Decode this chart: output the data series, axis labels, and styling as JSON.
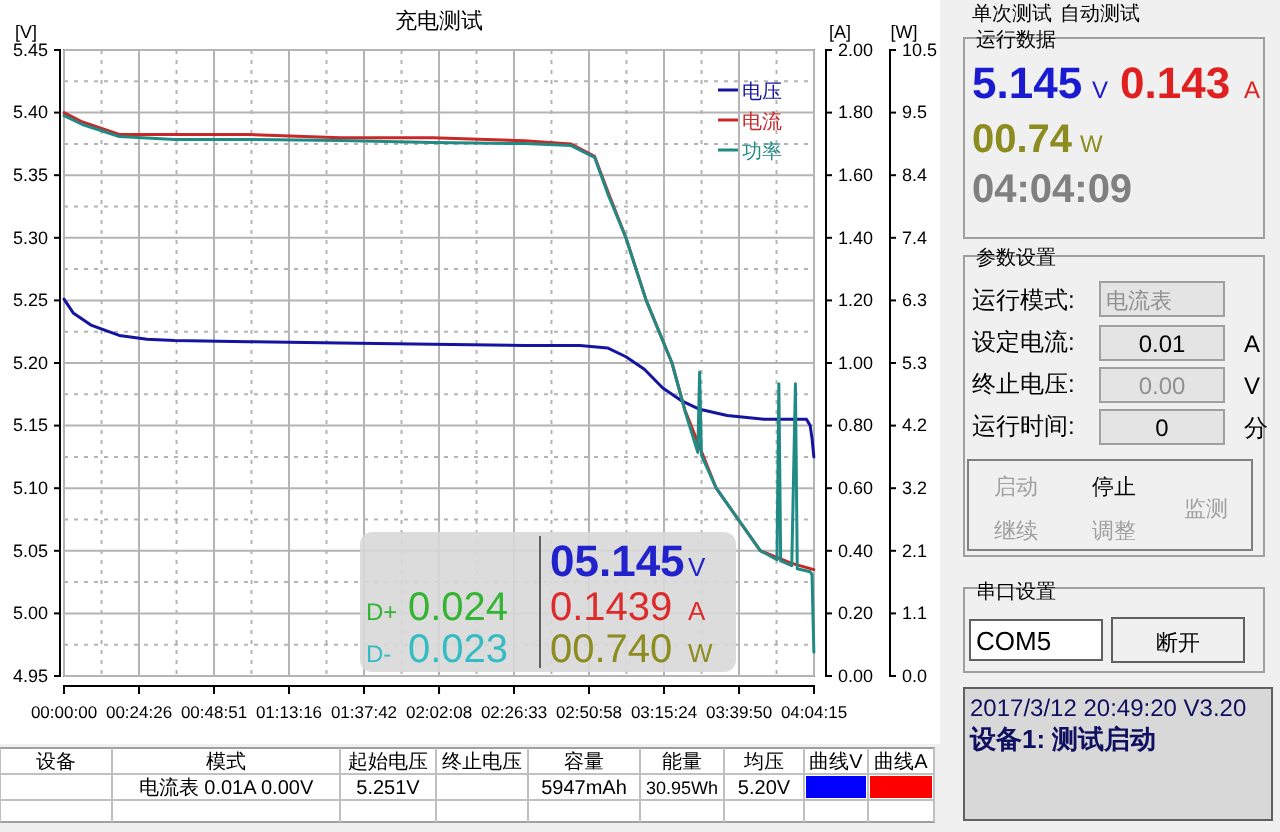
{
  "chart_data": {
    "type": "line",
    "title": "充电测试",
    "ylabel": "[V]",
    "y2label": "[A]",
    "y3label": "[W]",
    "xlim": [
      0,
      4.0708
    ],
    "xticks": [
      {
        "value": 0,
        "label": "00:00:00"
      },
      {
        "value": 0.4072,
        "label": "00:24:26"
      },
      {
        "value": 0.8142,
        "label": "00:48:51"
      },
      {
        "value": 1.2211,
        "label": "01:13:16"
      },
      {
        "value": 1.6283,
        "label": "01:37:42"
      },
      {
        "value": 2.0356,
        "label": "02:02:08"
      },
      {
        "value": 2.4425,
        "label": "02:26:33"
      },
      {
        "value": 2.8494,
        "label": "02:50:58"
      },
      {
        "value": 3.2567,
        "label": "03:15:24"
      },
      {
        "value": 3.6639,
        "label": "03:39:50"
      },
      {
        "value": 4.0708,
        "label": "04:04:15"
      }
    ],
    "ylim": [
      4.95,
      5.45
    ],
    "yticks": [
      {
        "value": 4.95,
        "label": "4.95"
      },
      {
        "value": 5.0,
        "label": "5.00"
      },
      {
        "value": 5.05,
        "label": "5.05"
      },
      {
        "value": 5.1,
        "label": "5.10"
      },
      {
        "value": 5.15,
        "label": "5.15"
      },
      {
        "value": 5.2,
        "label": "5.20"
      },
      {
        "value": 5.25,
        "label": "5.25"
      },
      {
        "value": 5.3,
        "label": "5.30"
      },
      {
        "value": 5.35,
        "label": "5.35"
      },
      {
        "value": 5.4,
        "label": "5.40"
      },
      {
        "value": 5.45,
        "label": "5.45"
      }
    ],
    "y2lim": [
      0,
      2
    ],
    "y2ticks": [
      {
        "value": 0,
        "label": "0.00"
      },
      {
        "value": 0.2,
        "label": "0.20"
      },
      {
        "value": 0.4,
        "label": "0.40"
      },
      {
        "value": 0.6,
        "label": "0.60"
      },
      {
        "value": 0.8,
        "label": "0.80"
      },
      {
        "value": 1.0,
        "label": "1.00"
      },
      {
        "value": 1.2,
        "label": "1.20"
      },
      {
        "value": 1.4,
        "label": "1.40"
      },
      {
        "value": 1.6,
        "label": "1.60"
      },
      {
        "value": 1.8,
        "label": "1.80"
      },
      {
        "value": 2.0,
        "label": "2.00"
      }
    ],
    "y3lim": [
      0,
      10.5
    ],
    "y3ticks": [
      {
        "value": 0,
        "label": "0.0"
      },
      {
        "value": 1.05,
        "label": "1.1"
      },
      {
        "value": 2.1,
        "label": "2.1"
      },
      {
        "value": 3.15,
        "label": "3.2"
      },
      {
        "value": 4.2,
        "label": "4.2"
      },
      {
        "value": 5.25,
        "label": "5.3"
      },
      {
        "value": 6.3,
        "label": "6.3"
      },
      {
        "value": 7.35,
        "label": "7.4"
      },
      {
        "value": 8.4,
        "label": "8.4"
      },
      {
        "value": 9.45,
        "label": "9.5"
      },
      {
        "value": 10.5,
        "label": "10.5"
      }
    ],
    "grid": true,
    "legend": "top right",
    "series": [
      {
        "name": "电压",
        "color": "#1414a0",
        "axis": "y",
        "x": [
          0,
          0.05,
          0.15,
          0.3,
          0.45,
          0.6,
          1.0,
          1.5,
          2.0,
          2.5,
          2.8,
          2.95,
          3.05,
          3.15,
          3.25,
          3.35,
          3.45,
          3.6,
          3.8,
          3.95,
          4.03,
          4.05,
          4.06,
          4.07
        ],
        "values": [
          5.251,
          5.24,
          5.23,
          5.222,
          5.219,
          5.218,
          5.217,
          5.216,
          5.215,
          5.214,
          5.214,
          5.212,
          5.205,
          5.195,
          5.18,
          5.17,
          5.163,
          5.158,
          5.155,
          5.155,
          5.155,
          5.15,
          5.14,
          5.125
        ]
      },
      {
        "name": "电流",
        "color": "#c82828",
        "axis": "y2",
        "x": [
          0,
          0.1,
          0.3,
          0.6,
          1.0,
          1.5,
          2.0,
          2.5,
          2.75,
          2.88,
          2.95,
          3.05,
          3.16,
          3.3,
          3.37,
          3.54,
          3.78,
          3.95,
          4.07
        ],
        "values": [
          1.8,
          1.77,
          1.73,
          1.73,
          1.73,
          1.72,
          1.72,
          1.71,
          1.7,
          1.66,
          1.55,
          1.4,
          1.2,
          1.0,
          0.85,
          0.6,
          0.4,
          0.36,
          0.34
        ]
      },
      {
        "name": "功率",
        "color": "#208a84",
        "axis": "y3",
        "x": [
          0,
          0.1,
          0.3,
          0.6,
          1.0,
          1.5,
          2.0,
          2.5,
          2.75,
          2.88,
          2.95,
          3.05,
          3.16,
          3.3,
          3.37,
          3.44,
          3.45,
          3.46,
          3.54,
          3.78,
          3.87,
          3.88,
          3.89,
          3.95,
          3.97,
          3.98,
          4.05,
          4.06,
          4.07
        ],
        "values": [
          9.4,
          9.25,
          9.05,
          9.0,
          9.0,
          8.98,
          8.95,
          8.93,
          8.9,
          8.7,
          8.1,
          7.35,
          6.3,
          5.25,
          4.45,
          3.75,
          5.1,
          3.7,
          3.15,
          2.1,
          1.95,
          4.9,
          1.93,
          1.85,
          4.9,
          1.8,
          1.75,
          1.7,
          0.4
        ]
      }
    ],
    "annotations": [
      "05.145",
      "V",
      "D+",
      "0.024",
      "0.1439",
      "A",
      "D-",
      "0.023",
      "00.740",
      "W",
      "单次测试",
      "自动测试",
      "运行数据",
      "5.145",
      "V",
      "0.143",
      "A",
      "00.74",
      "W",
      "04:04:09",
      "参数设置",
      "运行模式:",
      "电流表",
      "设定电流:",
      "0.01",
      "A",
      "终止电压:",
      "0.00",
      "V",
      "运行时间:",
      "0",
      "分",
      "启动",
      "停止",
      "监测",
      "继续",
      "调整",
      "串口设置",
      "COM5",
      "断开",
      "2017/3/12 20:49:20  V3.20",
      "设备1: 测试启动",
      "设备",
      "模式",
      "起始电压",
      "终止电压",
      "容量",
      "能量",
      "均压",
      "曲线V",
      "曲线A",
      "电流表  0.01A  0.00V",
      "5.251V",
      "5947mAh",
      "30.95Wh",
      "5.20V"
    ]
  }
}
